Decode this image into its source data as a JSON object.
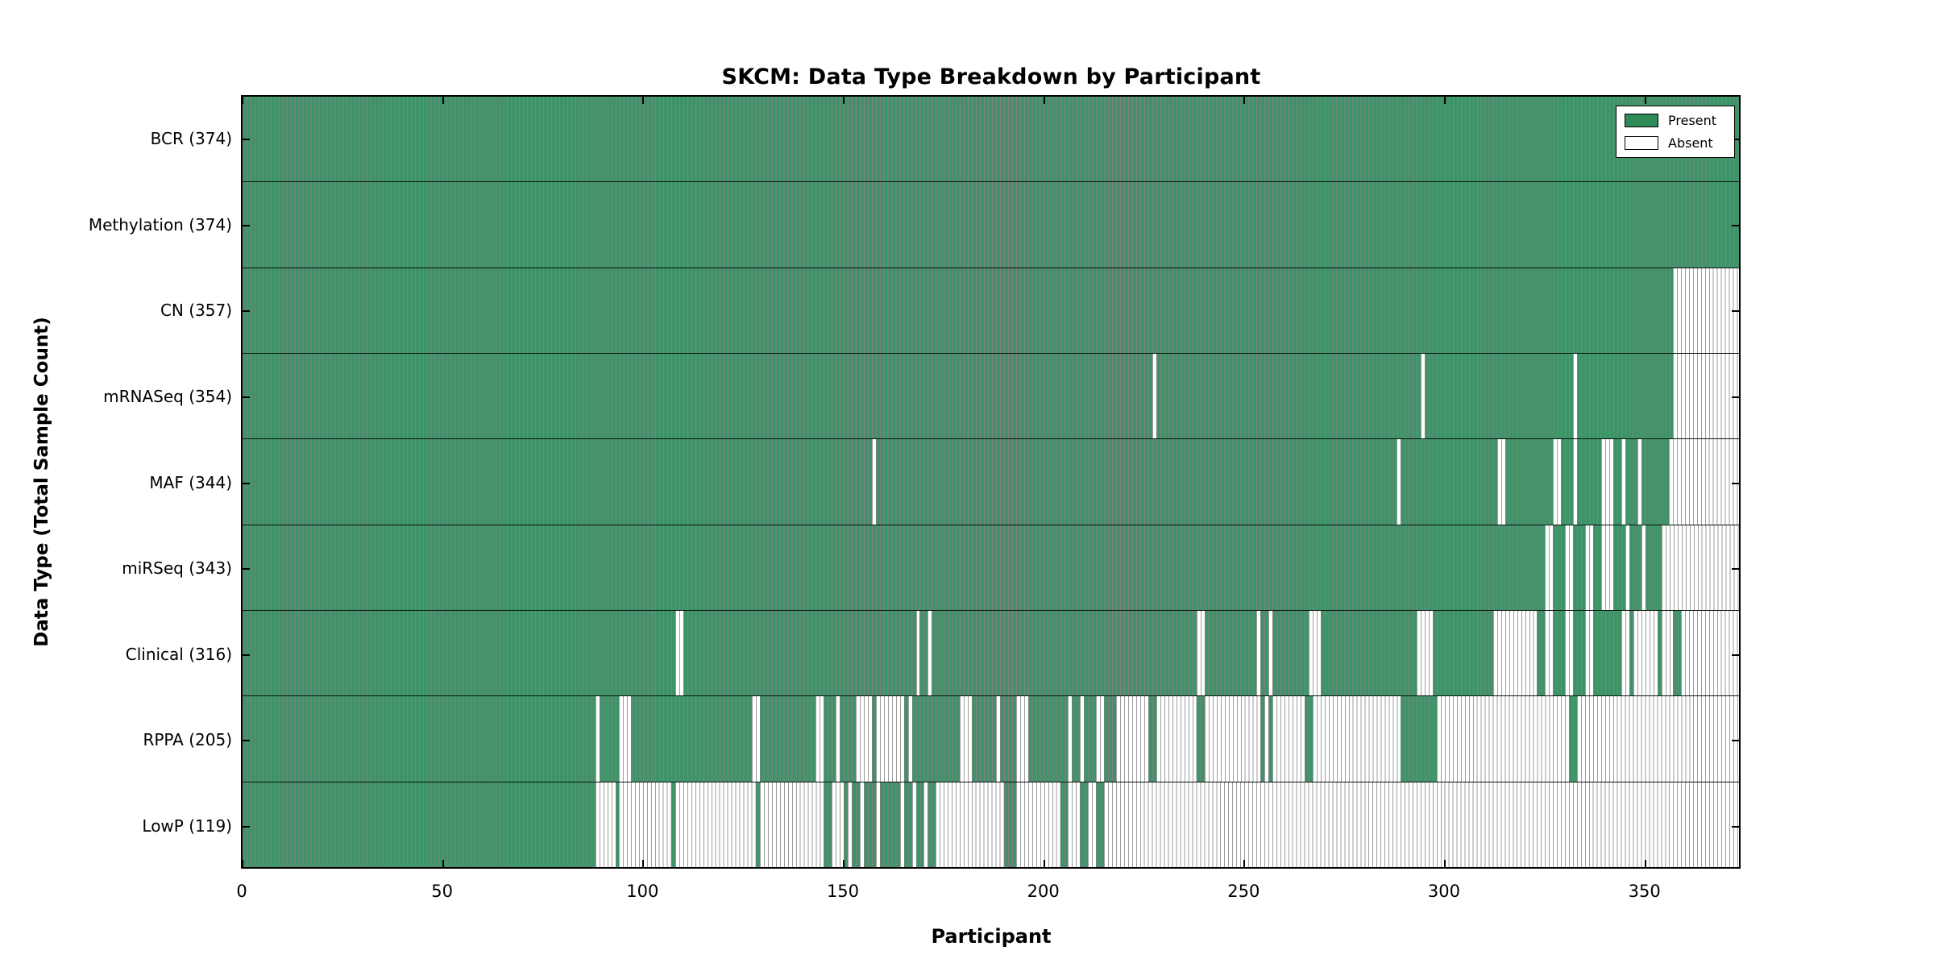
{
  "title": "SKCM: Data Type Breakdown by Participant",
  "x_axis": {
    "label": "Participant",
    "ticks": [
      0,
      50,
      100,
      150,
      200,
      250,
      300,
      350
    ],
    "min": 0,
    "max": 374
  },
  "y_axis": {
    "label": "Data Type (Total Sample Count)"
  },
  "legend": {
    "position": "upper right",
    "present_label": "Present",
    "absent_label": "Absent"
  },
  "colors": {
    "present": "#2e8b57",
    "present_fill": "#3e9468",
    "present_edge": "#1c4c30",
    "absent": "#ffffff",
    "absent_edge": "#9e9e9e",
    "frame": "#000000"
  },
  "chart_data": {
    "type": "heatmap",
    "title": "SKCM: Data Type Breakdown by Participant",
    "xlabel": "Participant",
    "ylabel": "Data Type (Total Sample Count)",
    "x_total": 374,
    "xlim": [
      0,
      374
    ],
    "grid": false,
    "legend_entries": [
      "Present",
      "Absent"
    ],
    "value_encoding": "absent_ranges are inclusive 0-based participant index ranges where data is Absent; all other participants are Present",
    "rows": [
      {
        "name": "BCR",
        "label": "BCR (374)",
        "count": 374,
        "absent_ranges": []
      },
      {
        "name": "Methylation",
        "label": "Methylation (374)",
        "count": 374,
        "absent_ranges": []
      },
      {
        "name": "CN",
        "label": "CN (357)",
        "count": 357,
        "absent_ranges": [
          [
            357,
            373
          ]
        ]
      },
      {
        "name": "mRNASeq",
        "label": "mRNASeq (354)",
        "count": 354,
        "absent_ranges": [
          [
            227,
            227
          ],
          [
            294,
            294
          ],
          [
            332,
            332
          ],
          [
            357,
            373
          ]
        ]
      },
      {
        "name": "MAF",
        "label": "MAF (344)",
        "count": 344,
        "absent_ranges": [
          [
            157,
            157
          ],
          [
            288,
            288
          ],
          [
            313,
            314
          ],
          [
            327,
            328
          ],
          [
            332,
            332
          ],
          [
            339,
            341
          ],
          [
            344,
            344
          ],
          [
            348,
            348
          ],
          [
            356,
            373
          ]
        ]
      },
      {
        "name": "miRSeq",
        "label": "miRSeq (343)",
        "count": 343,
        "absent_ranges": [
          [
            325,
            326
          ],
          [
            330,
            331
          ],
          [
            335,
            336
          ],
          [
            339,
            341
          ],
          [
            345,
            345
          ],
          [
            349,
            349
          ],
          [
            354,
            373
          ]
        ]
      },
      {
        "name": "Clinical",
        "label": "Clinical (316)",
        "count": 316,
        "absent_ranges": [
          [
            108,
            109
          ],
          [
            168,
            168
          ],
          [
            171,
            171
          ],
          [
            238,
            239
          ],
          [
            253,
            253
          ],
          [
            256,
            256
          ],
          [
            266,
            268
          ],
          [
            293,
            296
          ],
          [
            312,
            322
          ],
          [
            325,
            326
          ],
          [
            330,
            331
          ],
          [
            335,
            336
          ],
          [
            344,
            345
          ],
          [
            347,
            352
          ],
          [
            354,
            356
          ],
          [
            359,
            373
          ]
        ]
      },
      {
        "name": "RPPA",
        "label": "RPPA (205)",
        "count": 205,
        "absent_ranges": [
          [
            88,
            88
          ],
          [
            94,
            96
          ],
          [
            127,
            128
          ],
          [
            143,
            144
          ],
          [
            148,
            148
          ],
          [
            153,
            156
          ],
          [
            158,
            164
          ],
          [
            166,
            166
          ],
          [
            179,
            181
          ],
          [
            188,
            188
          ],
          [
            193,
            195
          ],
          [
            206,
            206
          ],
          [
            209,
            209
          ],
          [
            213,
            214
          ],
          [
            218,
            225
          ],
          [
            228,
            237
          ],
          [
            240,
            253
          ],
          [
            255,
            255
          ],
          [
            257,
            264
          ],
          [
            267,
            288
          ],
          [
            298,
            330
          ],
          [
            333,
            373
          ]
        ]
      },
      {
        "name": "LowP",
        "label": "LowP (119)",
        "count": 119,
        "absent_ranges": [
          [
            88,
            92
          ],
          [
            94,
            106
          ],
          [
            108,
            127
          ],
          [
            129,
            144
          ],
          [
            147,
            149
          ],
          [
            151,
            151
          ],
          [
            154,
            154
          ],
          [
            158,
            158
          ],
          [
            164,
            164
          ],
          [
            167,
            167
          ],
          [
            170,
            170
          ],
          [
            173,
            189
          ],
          [
            193,
            203
          ],
          [
            206,
            208
          ],
          [
            211,
            212
          ],
          [
            215,
            373
          ]
        ]
      }
    ]
  }
}
